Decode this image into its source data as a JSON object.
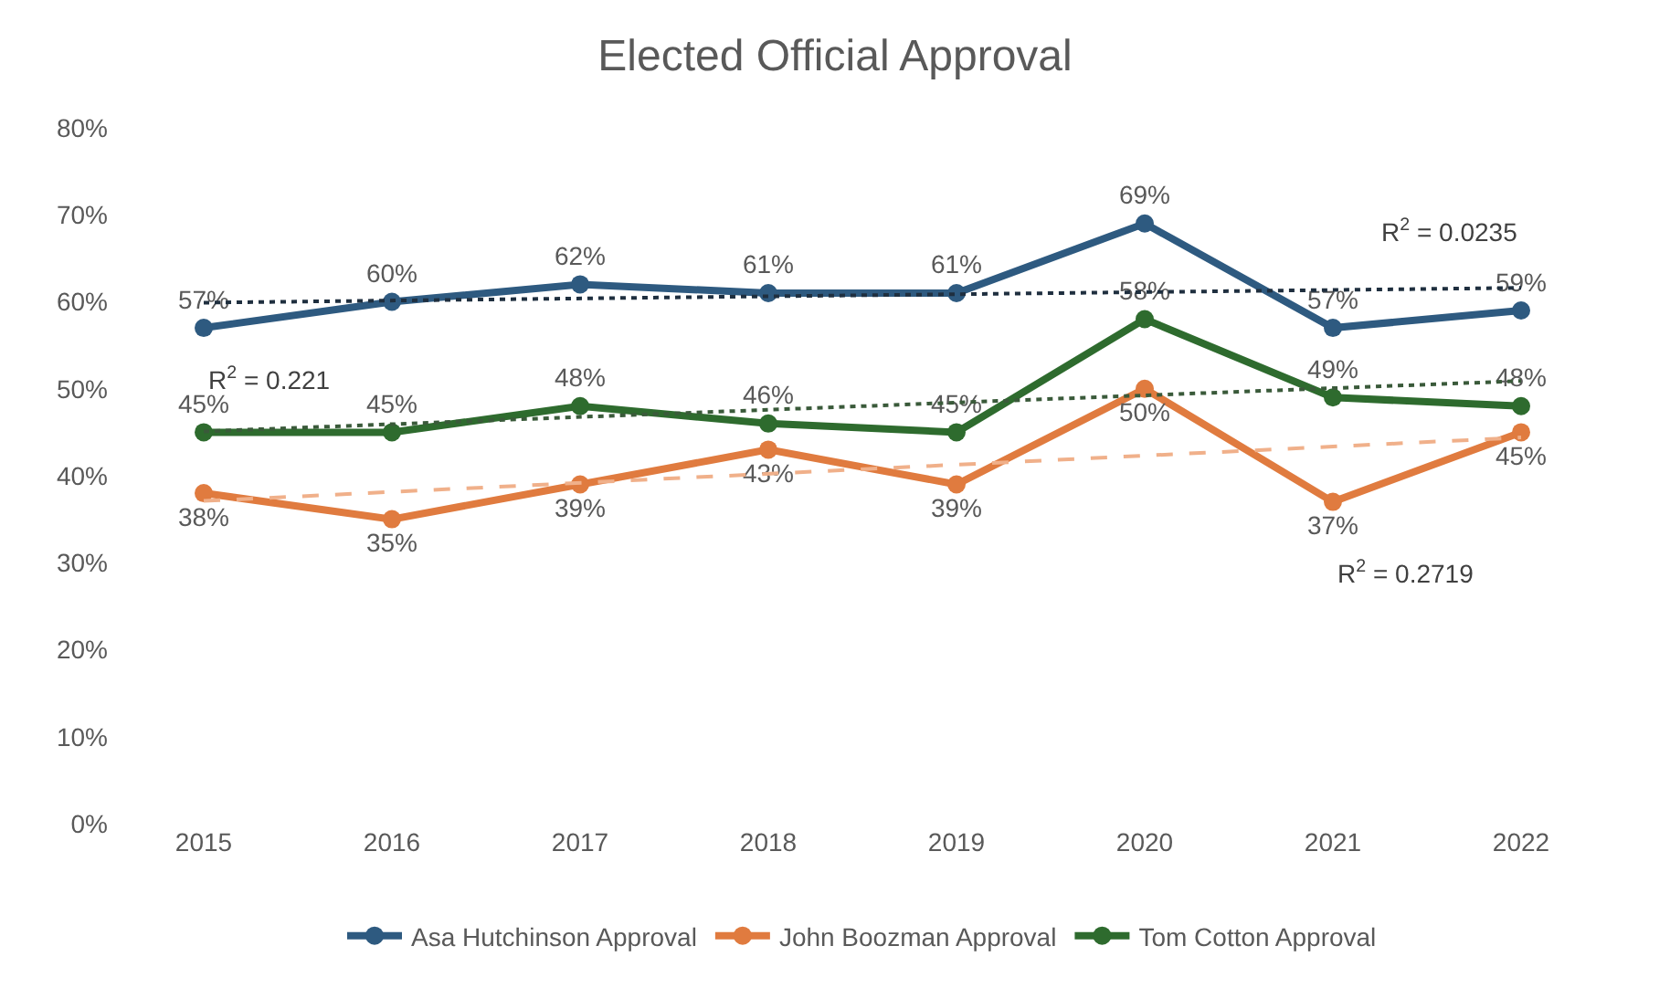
{
  "chart_data": {
    "type": "line",
    "title": "Elected Official Approval",
    "categories": [
      "2015",
      "2016",
      "2017",
      "2018",
      "2019",
      "2020",
      "2021",
      "2022"
    ],
    "series": [
      {
        "name": "Asa Hutchinson Approval",
        "color": "#2e5a80",
        "values": [
          57,
          60,
          62,
          61,
          61,
          69,
          57,
          59
        ],
        "value_labels": [
          "57%",
          "60%",
          "62%",
          "61%",
          "61%",
          "69%",
          "57%",
          "59%"
        ],
        "marker": "circle"
      },
      {
        "name": "John Boozman Approval",
        "color": "#e07b3f",
        "values": [
          38,
          35,
          39,
          43,
          39,
          50,
          37,
          45
        ],
        "value_labels": [
          "38%",
          "35%",
          "39%",
          "43%",
          "39%",
          "50%",
          "37%",
          "45%"
        ],
        "marker": "circle"
      },
      {
        "name": "Tom Cotton Approval",
        "color": "#2e6b2e",
        "values": [
          45,
          45,
          48,
          46,
          45,
          58,
          49,
          48
        ],
        "value_labels": [
          "45%",
          "45%",
          "48%",
          "46%",
          "45%",
          "58%",
          "49%",
          "48%"
        ],
        "marker": "circle"
      },
      {
        "type": "line",
        "values": [
          59.9,
          null,
          null,
          null,
          null,
          null,
          null,
          61.6
        ],
        "color": "#1f2f3f",
        "line_style": "dotted",
        "marker": "none"
      },
      {
        "type": "line",
        "values": [
          37.1,
          null,
          null,
          null,
          null,
          null,
          null,
          44.4
        ],
        "color": "#f0b08a",
        "line_style": "dashed",
        "marker": "none"
      },
      {
        "type": "line",
        "values": [
          45.1,
          null,
          null,
          null,
          null,
          null,
          null,
          50.9
        ],
        "color": "#3a5a3a",
        "line_style": "dotted",
        "marker": "none"
      }
    ],
    "ylim": [
      0,
      80
    ],
    "yticks": [
      {
        "value": 0,
        "label": "0%"
      },
      {
        "value": 10,
        "label": "10%"
      },
      {
        "value": 20,
        "label": "20%"
      },
      {
        "value": 30,
        "label": "30%"
      },
      {
        "value": 40,
        "label": "40%"
      },
      {
        "value": 50,
        "label": "50%"
      },
      {
        "value": 60,
        "label": "60%"
      },
      {
        "value": 70,
        "label": "70%"
      },
      {
        "value": 80,
        "label": "80%"
      }
    ],
    "legend": "bottom",
    "annotations": [
      "R$^{2}$ = 0.0235",
      "R$^{2}$ = 0.221",
      "R$^{2}$ = 0.2719"
    ]
  }
}
